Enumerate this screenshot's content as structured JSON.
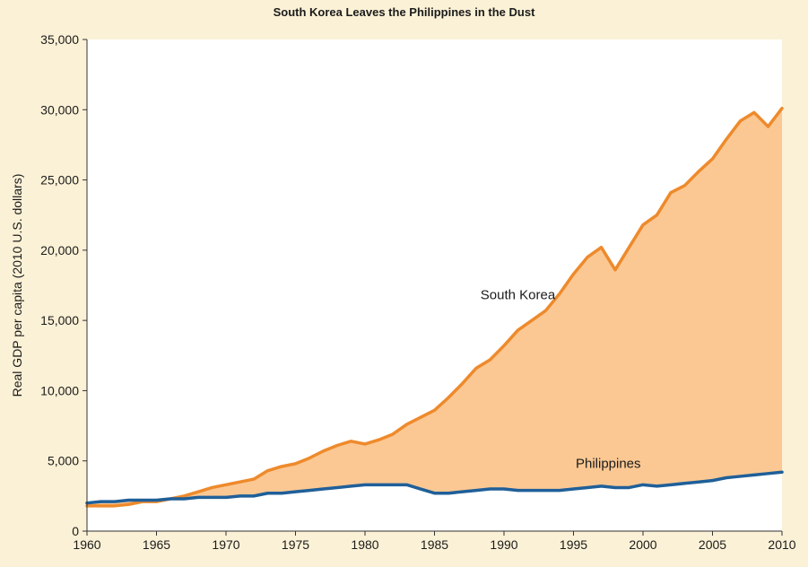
{
  "chart_data": {
    "type": "area",
    "title": "South Korea Leaves the Philippines in the Dust",
    "xlabel": "",
    "ylabel": "Real GDP per capita (2010 U.S. dollars)",
    "xlim": [
      1960,
      2010
    ],
    "ylim": [
      0,
      35000
    ],
    "x_ticks": [
      "1960",
      "1965",
      "1970",
      "1975",
      "1980",
      "1985",
      "1990",
      "1995",
      "2000",
      "2005",
      "2010"
    ],
    "y_ticks": [
      "0",
      "5,000",
      "10,000",
      "15,000",
      "20,000",
      "25,000",
      "30,000",
      "35,000"
    ],
    "grid": false,
    "x": [
      1960,
      1961,
      1962,
      1963,
      1964,
      1965,
      1966,
      1967,
      1968,
      1969,
      1970,
      1971,
      1972,
      1973,
      1974,
      1975,
      1976,
      1977,
      1978,
      1979,
      1980,
      1981,
      1982,
      1983,
      1984,
      1985,
      1986,
      1987,
      1988,
      1989,
      1990,
      1991,
      1992,
      1993,
      1994,
      1995,
      1996,
      1997,
      1998,
      1999,
      2000,
      2001,
      2002,
      2003,
      2004,
      2005,
      2006,
      2007,
      2008,
      2009,
      2010
    ],
    "series": [
      {
        "name": "South Korea",
        "color": "#ee8a2c",
        "values": [
          1800,
          1800,
          1800,
          1900,
          2100,
          2100,
          2300,
          2500,
          2800,
          3100,
          3300,
          3500,
          3700,
          4300,
          4600,
          4800,
          5200,
          5700,
          6100,
          6400,
          6200,
          6500,
          6900,
          7600,
          8100,
          8600,
          9500,
          10500,
          11600,
          12200,
          13200,
          14300,
          15000,
          15700,
          16900,
          18300,
          19500,
          20200,
          18600,
          20200,
          21800,
          22500,
          24100,
          24600,
          25600,
          26500,
          27900,
          29200,
          29800,
          28800,
          30100
        ]
      },
      {
        "name": "Philippines",
        "color": "#1f5f99",
        "values": [
          2000,
          2100,
          2100,
          2200,
          2200,
          2200,
          2300,
          2300,
          2400,
          2400,
          2400,
          2500,
          2500,
          2700,
          2700,
          2800,
          2900,
          3000,
          3100,
          3200,
          3300,
          3300,
          3300,
          3300,
          3000,
          2700,
          2700,
          2800,
          2900,
          3000,
          3000,
          2900,
          2900,
          2900,
          2900,
          3000,
          3100,
          3200,
          3100,
          3100,
          3300,
          3200,
          3300,
          3400,
          3500,
          3600,
          3800,
          3900,
          4000,
          4100,
          4200
        ]
      }
    ],
    "fill_between": {
      "color": "#fbc893"
    },
    "annotations": [
      {
        "text": "South Korea",
        "x": 1991,
        "y": 16500
      },
      {
        "text": "Philippines",
        "x": 1997.5,
        "y": 4500
      }
    ],
    "colors": {
      "background": "#fbf1d6",
      "plot_background": "#ffffff",
      "axis": "#333333",
      "text": "#1b1b1b"
    }
  }
}
